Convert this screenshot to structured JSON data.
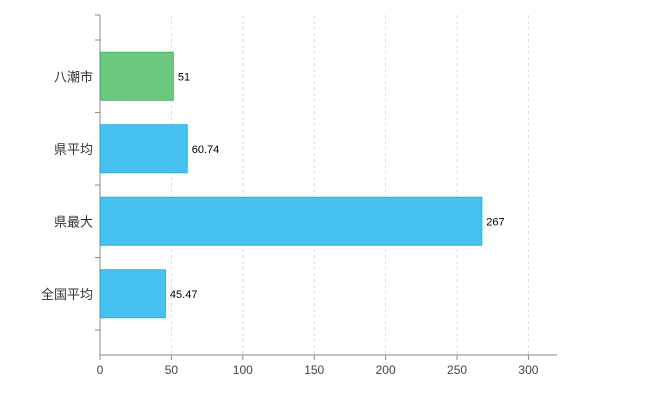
{
  "chart_data": {
    "type": "bar",
    "orientation": "horizontal",
    "title": "",
    "xlabel": "",
    "ylabel": "",
    "categories": [
      "八潮市",
      "県平均",
      "県最大",
      "全国平均"
    ],
    "values": [
      51,
      60.74,
      267,
      45.47
    ],
    "value_labels": [
      "51",
      "60.74",
      "267",
      "45.47"
    ],
    "bar_colors": [
      "#6cc87e",
      "#45c2f0",
      "#45c2f0",
      "#45c2f0"
    ],
    "bar_border_colors": [
      "#55b36a",
      "#32aedd",
      "#32aedd",
      "#32aedd"
    ],
    "xlim": [
      0,
      320
    ],
    "x_ticks": [
      0,
      50,
      100,
      150,
      200,
      250,
      300
    ],
    "grid": "vertical-dashed",
    "gridline_color": "#dddddd",
    "axis_color": "#8a8a8a",
    "tick_label_color": "#444444",
    "category_label_color": "#333333",
    "value_label_color": "#000000",
    "legend": "none",
    "background": "#ffffff"
  }
}
